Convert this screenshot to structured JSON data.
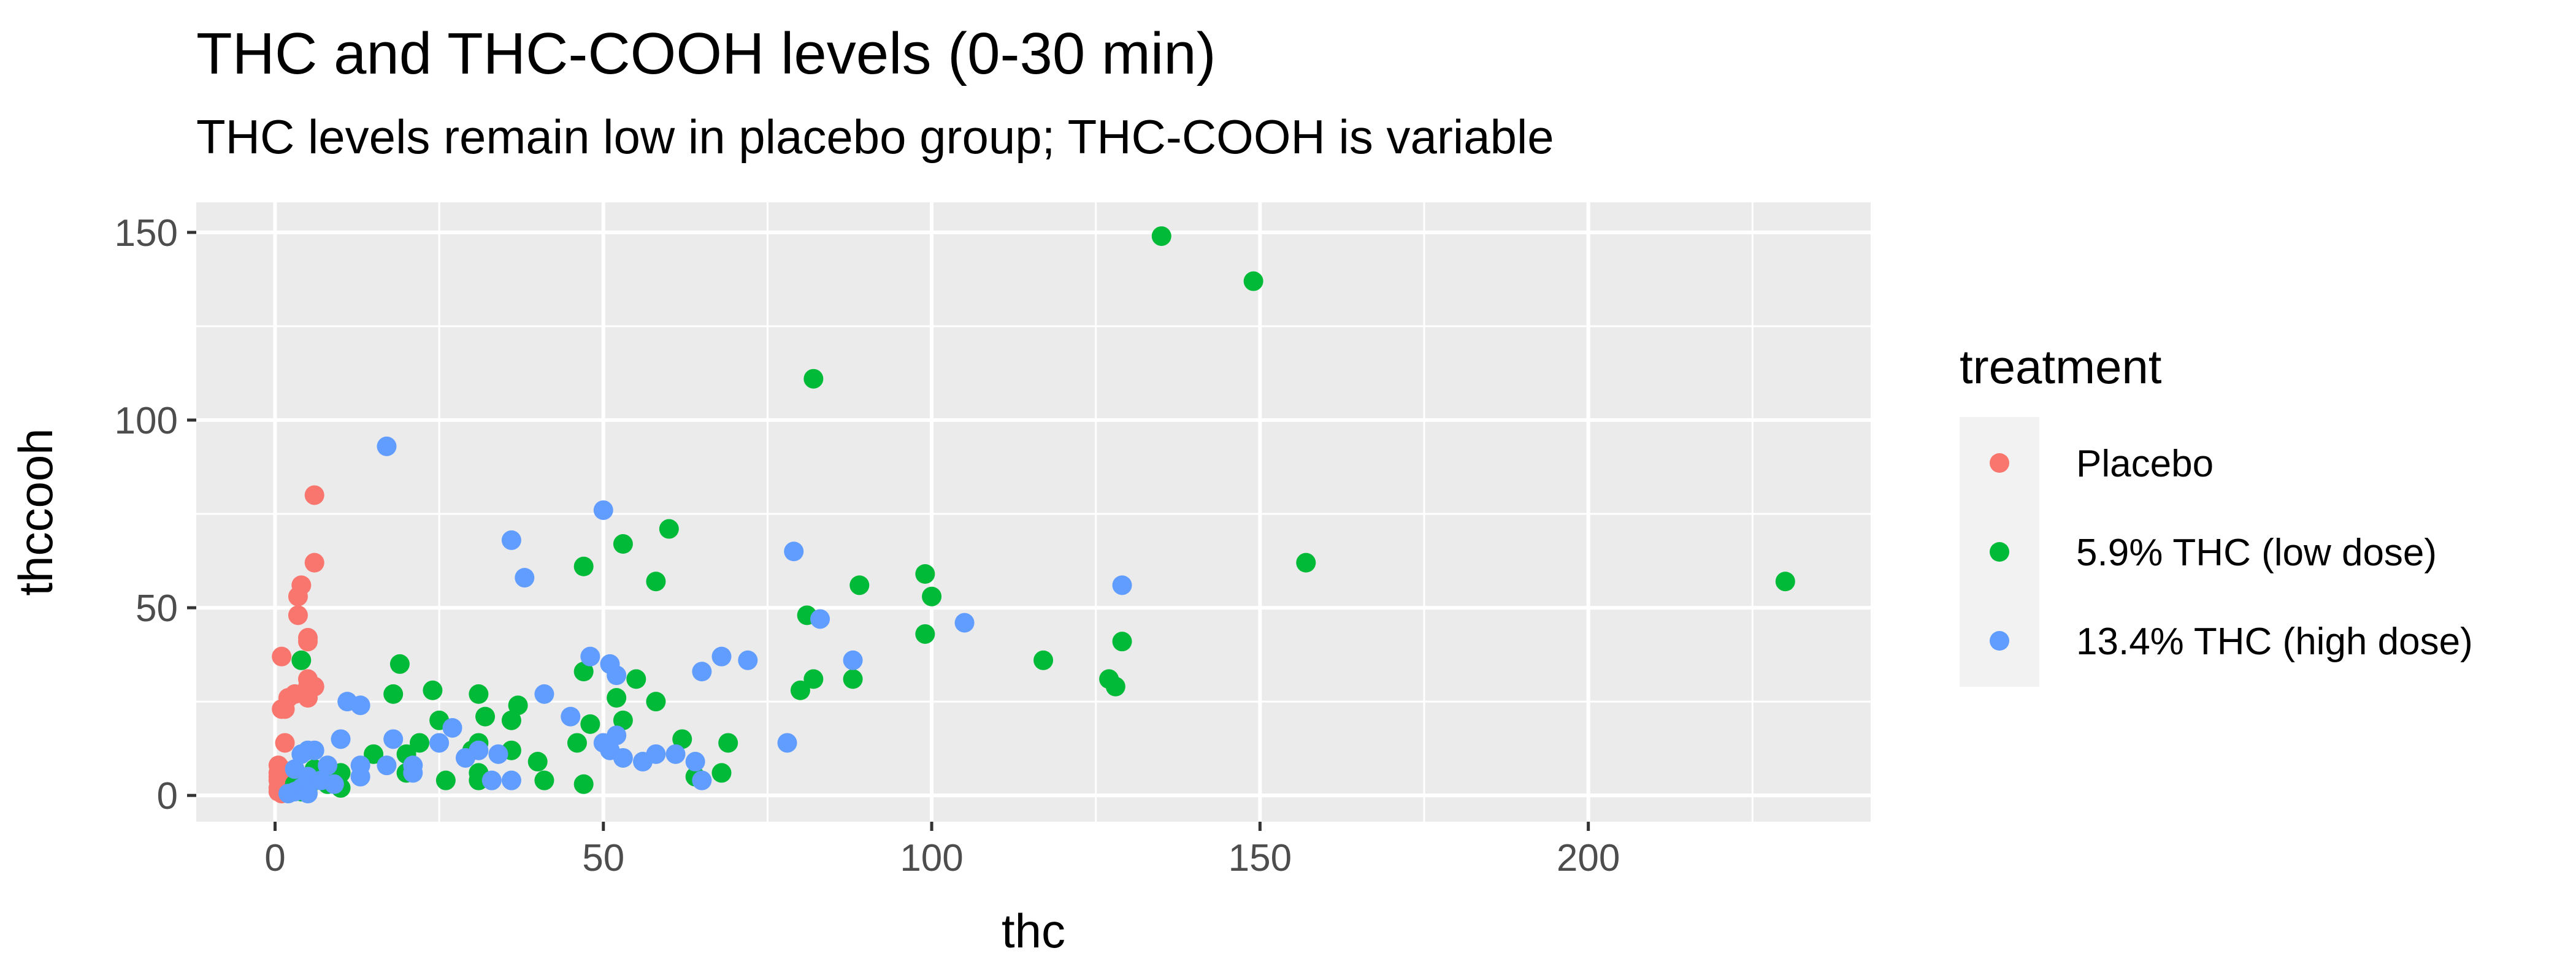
{
  "chart_data": {
    "type": "scatter",
    "title": "THC and THC-COOH levels (0-30 min)",
    "subtitle": "THC levels remain low in placebo group; THC-COOH is variable",
    "xlabel": "thc",
    "ylabel": "thccooh",
    "xlim": [
      -12,
      243
    ],
    "ylim": [
      -7,
      158
    ],
    "x_ticks": [
      0,
      50,
      100,
      150,
      200
    ],
    "y_ticks": [
      0,
      50,
      100,
      150
    ],
    "grid": true,
    "legend": {
      "title": "treatment",
      "position": "right"
    },
    "series": [
      {
        "name": "Placebo",
        "color": "#F8766D",
        "points": [
          [
            6,
            80
          ],
          [
            6,
            62
          ],
          [
            4,
            56
          ],
          [
            3.5,
            53
          ],
          [
            3.5,
            48
          ],
          [
            5,
            42
          ],
          [
            5,
            41
          ],
          [
            1,
            37
          ],
          [
            5,
            31
          ],
          [
            5,
            29
          ],
          [
            6,
            29
          ],
          [
            5,
            27
          ],
          [
            3,
            27
          ],
          [
            2,
            26
          ],
          [
            5,
            26
          ],
          [
            1,
            23
          ],
          [
            1.5,
            23
          ],
          [
            1.5,
            14
          ],
          [
            0.5,
            8
          ],
          [
            1,
            7
          ],
          [
            0.5,
            6
          ],
          [
            2,
            6
          ],
          [
            0.5,
            5
          ],
          [
            0.5,
            4
          ],
          [
            1,
            3
          ],
          [
            0.5,
            2
          ],
          [
            0.5,
            1
          ],
          [
            1,
            0.5
          ],
          [
            2,
            1
          ],
          [
            3,
            2
          ]
        ]
      },
      {
        "name": "5.9% THC (low dose)",
        "color": "#00BA38",
        "points": [
          [
            135,
            149
          ],
          [
            149,
            137
          ],
          [
            82,
            111
          ],
          [
            157,
            62
          ],
          [
            230,
            57
          ],
          [
            60,
            71
          ],
          [
            53,
            67
          ],
          [
            47,
            61
          ],
          [
            58,
            57
          ],
          [
            89,
            56
          ],
          [
            99,
            59
          ],
          [
            100,
            53
          ],
          [
            81,
            48
          ],
          [
            99,
            43
          ],
          [
            129,
            41
          ],
          [
            117,
            36
          ],
          [
            127,
            31
          ],
          [
            128,
            29
          ],
          [
            80,
            28
          ],
          [
            82,
            31
          ],
          [
            88,
            31
          ],
          [
            4,
            36
          ],
          [
            19,
            35
          ],
          [
            24,
            28
          ],
          [
            18,
            27
          ],
          [
            31,
            27
          ],
          [
            25,
            20
          ],
          [
            32,
            21
          ],
          [
            36,
            20
          ],
          [
            37,
            24
          ],
          [
            47,
            33
          ],
          [
            52,
            26
          ],
          [
            55,
            31
          ],
          [
            58,
            25
          ],
          [
            53,
            20
          ],
          [
            48,
            19
          ],
          [
            46,
            14
          ],
          [
            62,
            15
          ],
          [
            69,
            14
          ],
          [
            68,
            6
          ],
          [
            64,
            5
          ],
          [
            47,
            3
          ],
          [
            40,
            9
          ],
          [
            41,
            4
          ],
          [
            31,
            14
          ],
          [
            30,
            12
          ],
          [
            36,
            12
          ],
          [
            22,
            14
          ],
          [
            20,
            11
          ],
          [
            15,
            11
          ],
          [
            20,
            6
          ],
          [
            26,
            4
          ],
          [
            31,
            4
          ],
          [
            31,
            6
          ],
          [
            10,
            6
          ],
          [
            10,
            2
          ],
          [
            8,
            3
          ],
          [
            6,
            7
          ],
          [
            5,
            4
          ],
          [
            5,
            2
          ],
          [
            4,
            1
          ],
          [
            3,
            3
          ]
        ]
      },
      {
        "name": "13.4% THC (high dose)",
        "color": "#619CFF",
        "points": [
          [
            17,
            93
          ],
          [
            50,
            76
          ],
          [
            36,
            68
          ],
          [
            38,
            58
          ],
          [
            79,
            65
          ],
          [
            83,
            47
          ],
          [
            129,
            56
          ],
          [
            105,
            46
          ],
          [
            88,
            36
          ],
          [
            72,
            36
          ],
          [
            68,
            37
          ],
          [
            65,
            33
          ],
          [
            48,
            37
          ],
          [
            51,
            35
          ],
          [
            52,
            32
          ],
          [
            41,
            27
          ],
          [
            45,
            21
          ],
          [
            52,
            16
          ],
          [
            50,
            14
          ],
          [
            51,
            12
          ],
          [
            53,
            10
          ],
          [
            56,
            9
          ],
          [
            58,
            11
          ],
          [
            61,
            11
          ],
          [
            64,
            9
          ],
          [
            65,
            4
          ],
          [
            36,
            4
          ],
          [
            33,
            4
          ],
          [
            34,
            11
          ],
          [
            31,
            12
          ],
          [
            29,
            10
          ],
          [
            27,
            18
          ],
          [
            25,
            14
          ],
          [
            21,
            8
          ],
          [
            21,
            6
          ],
          [
            18,
            15
          ],
          [
            17,
            8
          ],
          [
            13,
            24
          ],
          [
            11,
            25
          ],
          [
            13,
            8
          ],
          [
            10,
            15
          ],
          [
            8,
            8
          ],
          [
            6,
            12
          ],
          [
            5,
            12
          ],
          [
            4,
            11
          ],
          [
            3,
            7
          ],
          [
            5,
            5
          ],
          [
            7,
            4
          ],
          [
            9,
            3
          ],
          [
            13,
            5
          ],
          [
            4,
            2
          ],
          [
            3,
            1
          ],
          [
            2,
            0.5
          ],
          [
            5,
            0.5
          ],
          [
            78,
            14
          ]
        ]
      }
    ]
  }
}
